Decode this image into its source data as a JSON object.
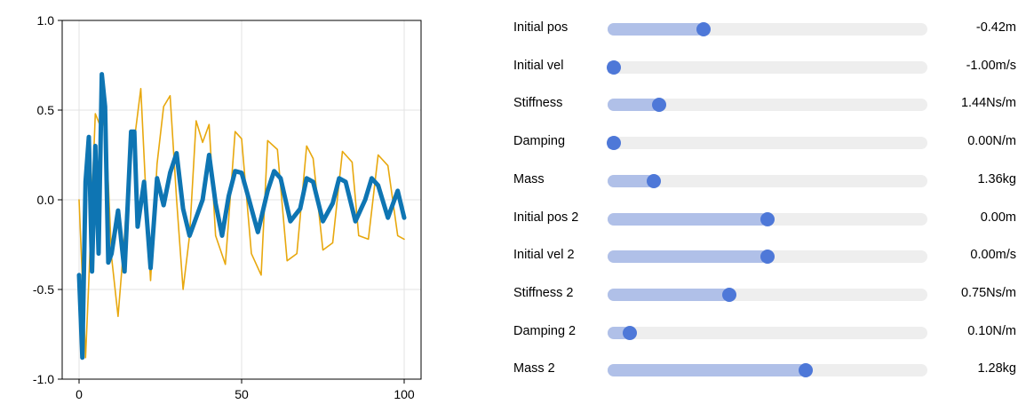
{
  "chart_data": {
    "type": "line",
    "title": "",
    "xlabel": "",
    "ylabel": "",
    "xlim": [
      0,
      100
    ],
    "ylim": [
      -1.0,
      1.0
    ],
    "x_ticks": [
      "0",
      "50",
      "100"
    ],
    "y_ticks": [
      "-1.0",
      "-0.5",
      "0.0",
      "0.5",
      "1.0"
    ],
    "grid": true,
    "series": [
      {
        "color": "#e8a80e",
        "x": [
          0,
          2,
          3,
          5,
          7,
          8,
          10,
          12,
          14,
          16,
          17,
          19,
          21,
          22,
          24,
          26,
          28,
          30,
          32,
          34,
          36,
          38,
          40,
          42,
          45,
          48,
          50,
          53,
          56,
          58,
          61,
          64,
          67,
          70,
          72,
          75,
          78,
          81,
          84,
          86,
          89,
          92,
          95,
          98,
          100
        ],
        "values": [
          0.0,
          -0.88,
          -0.45,
          0.48,
          0.39,
          0.5,
          -0.32,
          -0.65,
          -0.2,
          0.38,
          0.33,
          0.62,
          -0.14,
          -0.45,
          0.2,
          0.52,
          0.58,
          0.0,
          -0.5,
          -0.2,
          0.44,
          0.32,
          0.42,
          -0.2,
          -0.36,
          0.38,
          0.34,
          -0.3,
          -0.42,
          0.33,
          0.28,
          -0.34,
          -0.3,
          0.3,
          0.23,
          -0.28,
          -0.24,
          0.27,
          0.21,
          -0.2,
          -0.22,
          0.25,
          0.19,
          -0.2,
          -0.22
        ]
      },
      {
        "color": "#0e75b3",
        "x": [
          0,
          1,
          2,
          3,
          4,
          5,
          6,
          7,
          8,
          9,
          10,
          12,
          14,
          16,
          17,
          18,
          20,
          22,
          24,
          26,
          28,
          30,
          32,
          34,
          36,
          38,
          40,
          42,
          44,
          46,
          48,
          50,
          52,
          55,
          58,
          60,
          62,
          65,
          68,
          70,
          72,
          75,
          78,
          80,
          82,
          85,
          88,
          90,
          92,
          95,
          98,
          100
        ],
        "values": [
          -0.42,
          -0.88,
          0.1,
          0.35,
          -0.4,
          0.3,
          -0.3,
          0.7,
          0.52,
          -0.35,
          -0.3,
          -0.06,
          -0.4,
          0.38,
          0.38,
          -0.15,
          0.1,
          -0.38,
          0.12,
          -0.03,
          0.15,
          0.26,
          -0.05,
          -0.2,
          -0.1,
          0.0,
          0.25,
          -0.02,
          -0.2,
          0.02,
          0.16,
          0.15,
          0.02,
          -0.18,
          0.05,
          0.16,
          0.12,
          -0.12,
          -0.05,
          0.12,
          0.1,
          -0.12,
          -0.02,
          0.12,
          0.1,
          -0.12,
          0.0,
          0.12,
          0.08,
          -0.1,
          0.05,
          -0.1
        ]
      }
    ]
  },
  "sliders": [
    {
      "label": "Initial pos",
      "value": "-0.42m",
      "fraction": 0.3
    },
    {
      "label": "Initial vel",
      "value": "-1.00m/s",
      "fraction": 0.02
    },
    {
      "label": "Stiffness",
      "value": "1.44Ns/m",
      "fraction": 0.16
    },
    {
      "label": "Damping",
      "value": "0.00N/m",
      "fraction": 0.02
    },
    {
      "label": "Mass",
      "value": "1.36kg",
      "fraction": 0.145
    },
    {
      "label": "Initial pos 2",
      "value": "0.00m",
      "fraction": 0.5
    },
    {
      "label": "Initial vel 2",
      "value": "0.00m/s",
      "fraction": 0.5
    },
    {
      "label": "Stiffness 2",
      "value": "0.75Ns/m",
      "fraction": 0.38
    },
    {
      "label": "Damping 2",
      "value": "0.10N/m",
      "fraction": 0.07
    },
    {
      "label": "Mass 2",
      "value": "1.28kg",
      "fraction": 0.62
    }
  ]
}
